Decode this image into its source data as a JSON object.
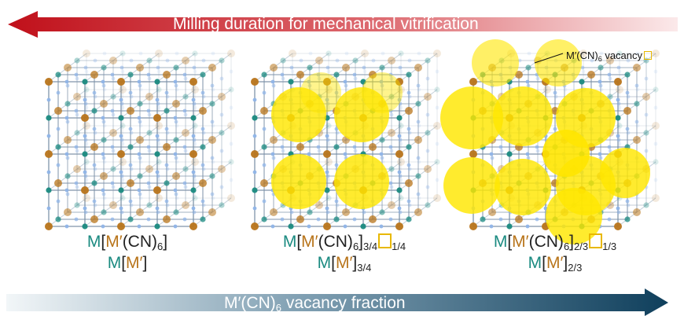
{
  "top_arrow": {
    "label": "Milling duration for mechanical vitrification"
  },
  "bottom_arrow": {
    "label_main": "M′(CN)",
    "label_sub": "6",
    "label_rest": " vacancy fraction"
  },
  "callout": {
    "text_main": "M′(CN)",
    "text_sub": "6",
    "text_rest": " vacancy"
  },
  "colors": {
    "M": "#1a8a80",
    "M_prime": "#b8741a",
    "vacancy": "#ffe600",
    "top_arrow": "#c8101a",
    "bottom_arrow": "#134a66"
  },
  "structures": [
    {
      "line1": {
        "m": "M",
        "open": "[",
        "mp": "M′",
        "cn": "(CN)",
        "cn_sub": "6",
        "close": "]",
        "close_sub": "",
        "vac_sub": ""
      },
      "line2": {
        "m": "M",
        "open": "[",
        "mp": "M′",
        "close": "]",
        "close_sub": ""
      }
    },
    {
      "line1": {
        "m": "M",
        "open": "[",
        "mp": "M′",
        "cn": "(CN)",
        "cn_sub": "6",
        "close": "]",
        "close_sub": "3/4",
        "vac_sub": "1/4"
      },
      "line2": {
        "m": "M",
        "open": "[",
        "mp": "M′",
        "close": "]",
        "close_sub": "3/4"
      }
    },
    {
      "line1": {
        "m": "M",
        "open": "[",
        "mp": "M′",
        "cn": "(CN)",
        "cn_sub": "6",
        "close": "]",
        "close_sub": "2/3",
        "vac_sub": "1/3"
      },
      "line2": {
        "m": "M",
        "open": "[",
        "mp": "M′",
        "close": "]",
        "close_sub": "2/3"
      }
    }
  ]
}
